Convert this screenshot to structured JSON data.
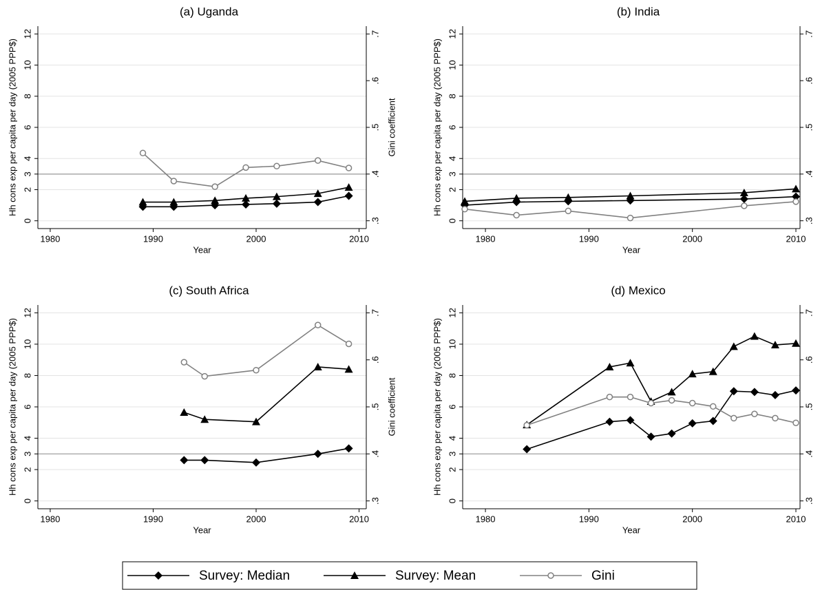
{
  "chart_data": [
    {
      "type": "line",
      "title": "(a) Uganda",
      "xlabel": "Year",
      "ylabel": "Hh cons exp per capita per day (2005 PPP$)",
      "y2label": "Gini coefficient",
      "x": [
        1989,
        1992,
        1996,
        1999,
        2002,
        2006,
        2009
      ],
      "xlim": [
        1978.8,
        2010.7
      ],
      "xticks": [
        1980,
        1990,
        2000,
        2010
      ],
      "ylim": [
        -0.5,
        12.5
      ],
      "yticks": [
        0,
        2,
        3,
        4,
        6,
        8,
        10,
        12
      ],
      "hline": 3,
      "y2lim": [
        0.2833,
        0.7167
      ],
      "y2ticks": [
        {
          "value": 0.3,
          "label": ".3"
        },
        {
          "value": 0.4,
          "label": ".4"
        },
        {
          "value": 0.5,
          "label": ".5"
        },
        {
          "value": 0.6,
          "label": ".6"
        },
        {
          "value": 0.7,
          "label": ".7"
        }
      ],
      "grid": true,
      "series": [
        {
          "name": "Survey: Median",
          "color": "#000000",
          "marker": "diamond",
          "values": [
            0.9,
            0.9,
            1.0,
            1.05,
            1.1,
            1.2,
            1.6
          ]
        },
        {
          "name": "Survey: Mean",
          "color": "#000000",
          "marker": "triangle",
          "values": [
            1.2,
            1.2,
            1.3,
            1.45,
            1.55,
            1.75,
            2.15
          ]
        },
        {
          "name": "Gini",
          "color": "#808080",
          "marker": "circle",
          "axis": "y2",
          "values": [
            0.445,
            0.385,
            0.373,
            0.414,
            0.417,
            0.429,
            0.413
          ]
        }
      ]
    },
    {
      "type": "line",
      "title": "(b) India",
      "xlabel": "Year",
      "ylabel": "Hh cons exp per capita per day (2005 PPP$)",
      "y2label": "Gini coefficient",
      "x": [
        1978,
        1983,
        1988,
        1994,
        2005,
        2010
      ],
      "xlim": [
        1977.8,
        2010.4
      ],
      "xticks": [
        1980,
        1990,
        2000,
        2010
      ],
      "ylim": [
        -0.5,
        12.5
      ],
      "yticks": [
        0,
        2,
        3,
        4,
        6,
        8,
        10,
        12
      ],
      "hline": 3,
      "y2lim": [
        0.2833,
        0.7167
      ],
      "y2ticks": [
        {
          "value": 0.3,
          "label": ".3"
        },
        {
          "value": 0.4,
          "label": ".4"
        },
        {
          "value": 0.5,
          "label": ".5"
        },
        {
          "value": 0.6,
          "label": ".6"
        },
        {
          "value": 0.7,
          "label": ".7"
        }
      ],
      "grid": true,
      "series": [
        {
          "color": "#000000",
          "marker": "diamond",
          "values": [
            1.0,
            1.2,
            1.25,
            1.3,
            1.4,
            1.55
          ]
        },
        {
          "color": "#000000",
          "marker": "triangle",
          "values": [
            1.25,
            1.45,
            1.5,
            1.6,
            1.8,
            2.05
          ]
        },
        {
          "color": "#808080",
          "marker": "circle",
          "axis": "y2",
          "values": [
            0.325,
            0.312,
            0.321,
            0.306,
            0.332,
            0.341
          ]
        }
      ]
    },
    {
      "type": "line",
      "title": "(c) South Africa",
      "xlabel": "Year",
      "ylabel": "Hh cons exp per capita per day (2005 PPP$)",
      "y2label": "Gini coefficient",
      "x": [
        1993,
        1995,
        2000,
        2006,
        2009
      ],
      "xlim": [
        1978.8,
        2010.7
      ],
      "xticks": [
        1980,
        1990,
        2000,
        2010
      ],
      "ylim": [
        -0.5,
        12.5
      ],
      "yticks": [
        0,
        2,
        3,
        4,
        6,
        8,
        10,
        12
      ],
      "hline": 3,
      "y2lim": [
        0.2833,
        0.7167
      ],
      "y2ticks": [
        {
          "value": 0.3,
          "label": ".3"
        },
        {
          "value": 0.4,
          "label": ".4"
        },
        {
          "value": 0.5,
          "label": ".5"
        },
        {
          "value": 0.6,
          "label": ".6"
        },
        {
          "value": 0.7,
          "label": ".7"
        }
      ],
      "grid": true,
      "series": [
        {
          "color": "#000000",
          "marker": "diamond",
          "values": [
            2.6,
            2.6,
            2.45,
            3.0,
            3.35
          ]
        },
        {
          "color": "#000000",
          "marker": "triangle",
          "values": [
            5.65,
            5.2,
            5.05,
            8.55,
            8.4
          ]
        },
        {
          "color": "#808080",
          "marker": "circle",
          "axis": "y2",
          "values": [
            0.595,
            0.565,
            0.578,
            0.674,
            0.634
          ]
        }
      ]
    },
    {
      "type": "line",
      "title": "(d) Mexico",
      "xlabel": "Year",
      "ylabel": "Hh cons exp per capita per day (2005 PPP$)",
      "y2label": "Gini coefficient",
      "x": [
        1984,
        1992,
        1994,
        1996,
        1998,
        2000,
        2002,
        2004,
        2006,
        2008,
        2010
      ],
      "xlim": [
        1977.8,
        2010.4
      ],
      "xticks": [
        1980,
        1990,
        2000,
        2010
      ],
      "ylim": [
        -0.5,
        12.5
      ],
      "yticks": [
        0,
        2,
        3,
        4,
        6,
        8,
        10,
        12
      ],
      "hline": 3,
      "y2lim": [
        0.2833,
        0.7167
      ],
      "y2ticks": [
        {
          "value": 0.3,
          "label": ".3"
        },
        {
          "value": 0.4,
          "label": ".4"
        },
        {
          "value": 0.5,
          "label": ".5"
        },
        {
          "value": 0.6,
          "label": ".6"
        },
        {
          "value": 0.7,
          "label": ".7"
        }
      ],
      "grid": true,
      "series": [
        {
          "color": "#000000",
          "marker": "diamond",
          "values": [
            3.3,
            5.05,
            5.15,
            4.1,
            4.3,
            4.95,
            5.1,
            7.0,
            6.95,
            6.75,
            7.05
          ]
        },
        {
          "color": "#000000",
          "marker": "triangle",
          "values": [
            4.85,
            8.55,
            8.8,
            6.35,
            6.95,
            8.1,
            8.25,
            9.85,
            10.5,
            9.95,
            10.05
          ]
        },
        {
          "color": "#808080",
          "marker": "circle",
          "axis": "y2",
          "values": [
            0.461,
            0.521,
            0.521,
            0.508,
            0.514,
            0.508,
            0.501,
            0.476,
            0.485,
            0.476,
            0.466
          ]
        }
      ]
    }
  ]
}
